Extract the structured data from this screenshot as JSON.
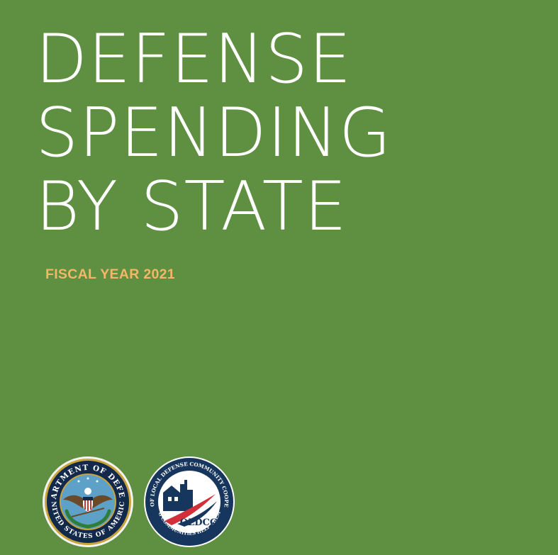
{
  "cover": {
    "title_lines": [
      "DEFENSE",
      "SPENDING",
      "BY STATE"
    ],
    "subtitle": "FISCAL YEAR 2021",
    "colors": {
      "background": "#5f8f41",
      "title": "#ffffff",
      "subtitle": "#f2b868"
    }
  },
  "logos": {
    "dod_seal": {
      "icon": "department-of-defense-seal",
      "top_text": "DEPARTMENT OF DEFENSE",
      "bottom_text": "UNITED STATES OF AMERICA"
    },
    "oldcc_seal": {
      "icon": "oldcc-seal",
      "ring_text_top": "OFFICE OF LOCAL DEFENSE COMMUNITY COOPERATION",
      "ring_text_bottom": "HELPING COMMUNITIES HELP THEMSELVES",
      "wordmark": "OLDCC"
    }
  }
}
